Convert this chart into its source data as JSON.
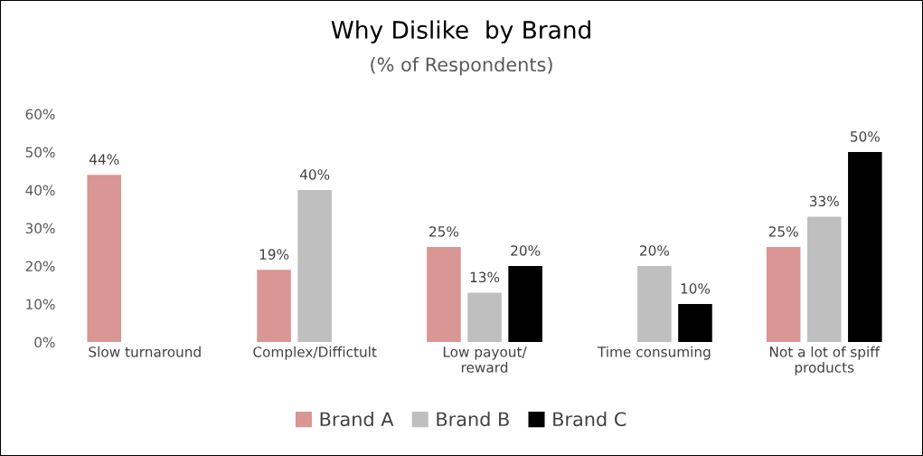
{
  "chart_data": {
    "type": "bar",
    "title": "Why Dislike  by Brand",
    "subtitle": "(% of Respondents)",
    "categories": [
      "Slow turnaround",
      "Complex/Diffictult",
      "Low payout/\nreward",
      "Time consuming",
      "Not a lot of spiff\nproducts"
    ],
    "series": [
      {
        "name": "Brand A",
        "color": "#d99694",
        "values": [
          44,
          19,
          25,
          null,
          25
        ],
        "value_labels": [
          "44%",
          "19%",
          "25%",
          null,
          "25%"
        ]
      },
      {
        "name": "Brand B",
        "color": "#bfbfbf",
        "values": [
          null,
          40,
          13,
          20,
          33
        ],
        "value_labels": [
          null,
          "40%",
          "13%",
          "20%",
          "33%"
        ]
      },
      {
        "name": "Brand C",
        "color": "#000000",
        "values": [
          null,
          null,
          20,
          10,
          50
        ],
        "value_labels": [
          null,
          null,
          "20%",
          "10%",
          "50%"
        ]
      }
    ],
    "ylim": [
      0,
      60
    ],
    "yticks": [
      {
        "value": 0,
        "label": "0%"
      },
      {
        "value": 10,
        "label": "10%"
      },
      {
        "value": 20,
        "label": "20%"
      },
      {
        "value": 30,
        "label": "30%"
      },
      {
        "value": 40,
        "label": "40%"
      },
      {
        "value": 50,
        "label": "50%"
      },
      {
        "value": 60,
        "label": "60%"
      }
    ],
    "grid": false,
    "legend": "bottom"
  }
}
